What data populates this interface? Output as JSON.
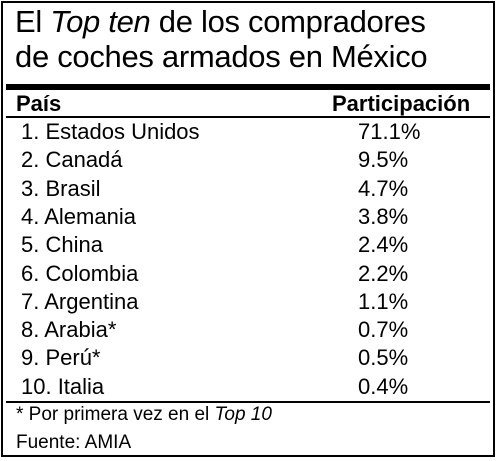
{
  "title": {
    "line1_pre": "El ",
    "line1_em": "Top ten",
    "line1_post": " de los compradores",
    "line2": "de coches armados en México"
  },
  "table": {
    "headers": {
      "country": "País",
      "share": "Participación"
    },
    "rows": [
      {
        "country": "1. Estados Unidos",
        "share": "71.1%"
      },
      {
        "country": "2. Canadá",
        "share": "9.5%"
      },
      {
        "country": "3. Brasil",
        "share": "4.7%"
      },
      {
        "country": "4. Alemania",
        "share": "3.8%"
      },
      {
        "country": "5. China",
        "share": "2.4%"
      },
      {
        "country": "6. Colombia",
        "share": "2.2%"
      },
      {
        "country": "7. Argentina",
        "share": "1.1%"
      },
      {
        "country": "8. Arabia*",
        "share": "0.7%"
      },
      {
        "country": "9. Perú*",
        "share": "0.5%"
      },
      {
        "country": "10. Italia",
        "share": "0.4%"
      }
    ]
  },
  "footnote": {
    "text": "* Por primera vez en el ",
    "em": "Top 10"
  },
  "source": "Fuente: AMIA"
}
